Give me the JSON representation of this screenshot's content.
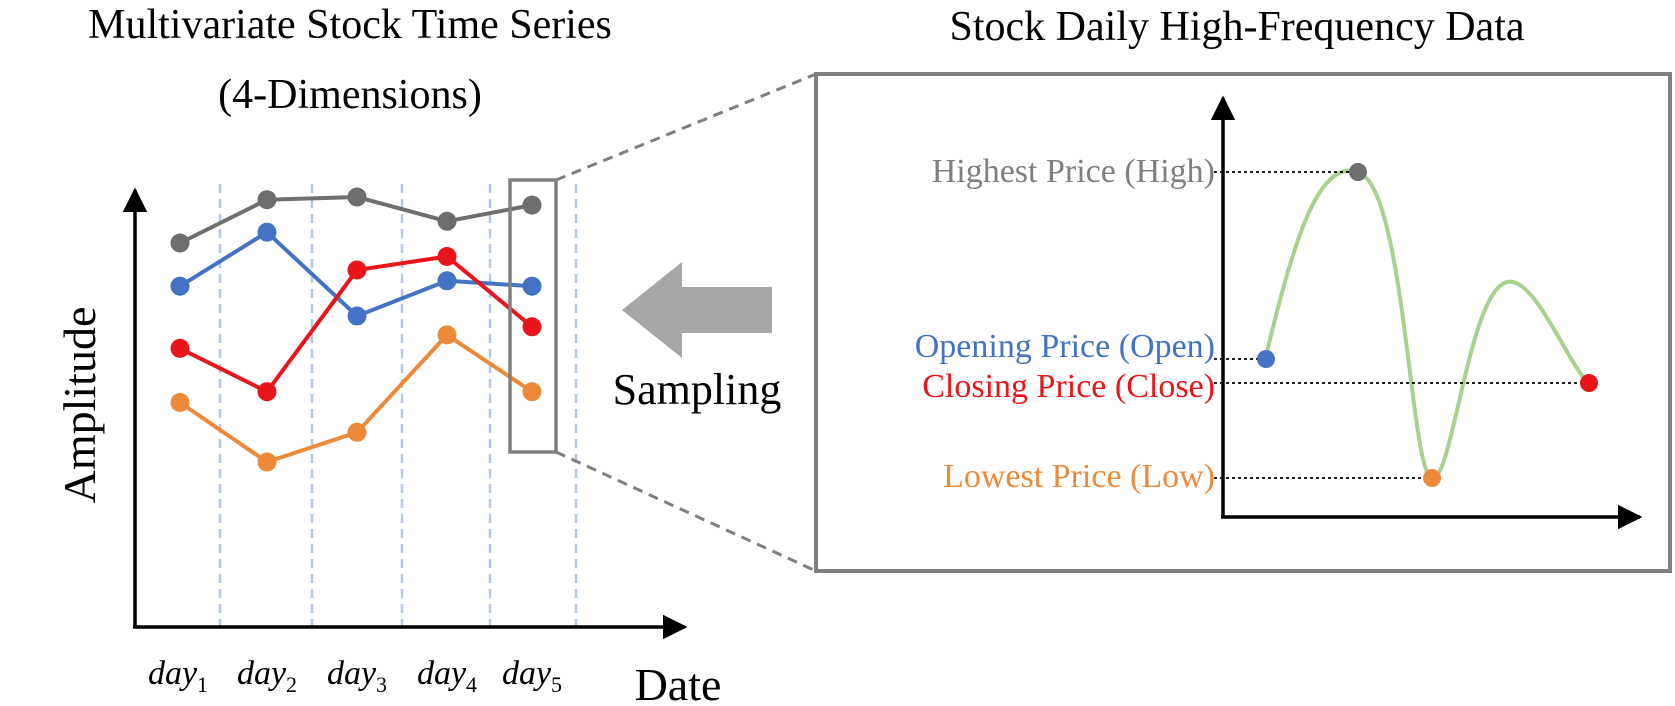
{
  "left_panel": {
    "title_line1": "Multivariate Stock Time Series",
    "title_line2": "(4-Dimensions)",
    "y_axis_label": "Amplitude",
    "x_axis_label": "Date",
    "day_labels": [
      {
        "base": "day",
        "sub": "1"
      },
      {
        "base": "day",
        "sub": "2"
      },
      {
        "base": "day",
        "sub": "3"
      },
      {
        "base": "day",
        "sub": "4"
      },
      {
        "base": "day",
        "sub": "5"
      }
    ],
    "series": [
      {
        "name": "High",
        "color": "#6e6e6e",
        "values": [
          7.9,
          9.5,
          9.6,
          8.7,
          9.3
        ]
      },
      {
        "name": "Open",
        "color": "#4472c4",
        "values": [
          6.3,
          8.3,
          5.2,
          6.5,
          6.3
        ]
      },
      {
        "name": "Close",
        "color": "#e8151b",
        "values": [
          4.0,
          2.4,
          6.9,
          7.4,
          4.8
        ]
      },
      {
        "name": "Low",
        "color": "#ed8a3a",
        "values": [
          2.0,
          -0.2,
          0.9,
          4.5,
          2.4
        ]
      }
    ]
  },
  "arrow": {
    "label": "Sampling",
    "color": "#a6a6a6"
  },
  "right_panel": {
    "title": "Stock Daily High-Frequency Data",
    "curve_color": "#a9d18e",
    "labels": {
      "high": {
        "text": "Highest Price (High)",
        "color": "#7f7f7f"
      },
      "open": {
        "text": "Opening Price (Open)",
        "color": "#4472c4"
      },
      "close": {
        "text": "Closing Price (Close)",
        "color": "#e8151b"
      },
      "low": {
        "text": "Lowest Price (Low)",
        "color": "#ed8a3a"
      }
    }
  }
}
